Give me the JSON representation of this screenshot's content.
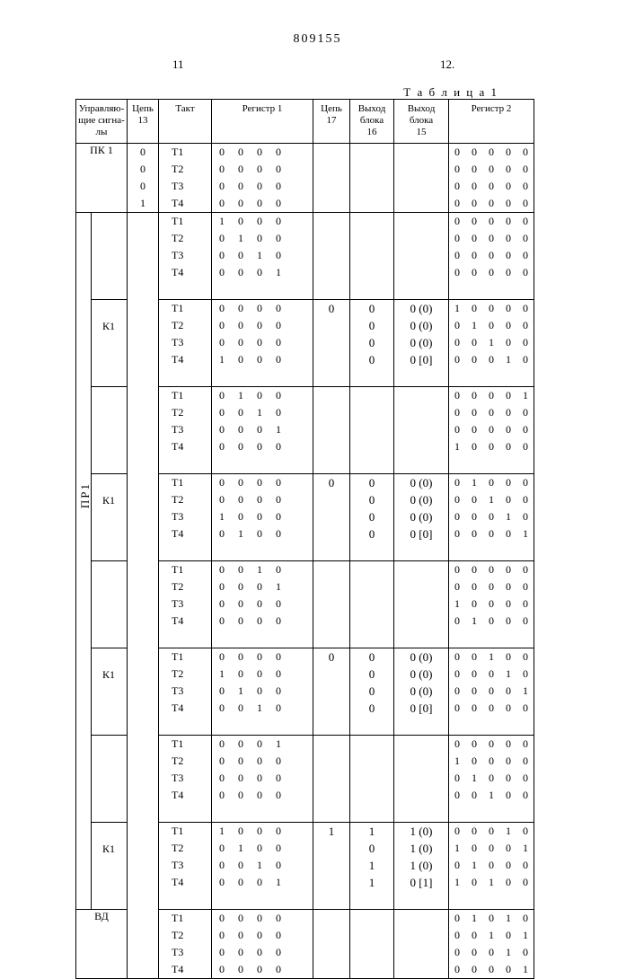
{
  "doc_number": "809155",
  "page_left": "11",
  "page_right": "12.",
  "table_label": "Т а б л и ц а  1",
  "headers": {
    "sig": "Управляю-\nщие сигна-\nлы",
    "c13": "Цепь\n13",
    "takt": "Такт",
    "r1": "Регистр 1",
    "c17": "Цепь\n17",
    "b16": "Выход\nблока\n16",
    "b15": "Выход\nблока\n15",
    "r2": "Регистр 2"
  },
  "sig_labels": {
    "pk1": "ПК 1",
    "pr1": "ПР1",
    "k1": "К1",
    "vd": "ВД"
  },
  "groups": [
    {
      "sig": "pk1",
      "c13": [
        "0",
        "0",
        "0",
        "1"
      ],
      "takt": [
        "Т1",
        "Т2",
        "Т3",
        "Т4"
      ],
      "r1": [
        "0 0 0 0",
        "0 0 0 0",
        "0 0 0 0",
        "0 0 0 0"
      ],
      "c17": [
        "",
        "",
        "",
        ""
      ],
      "b16": [
        "",
        "",
        "",
        ""
      ],
      "b15": [
        "",
        "",
        "",
        ""
      ],
      "r2": [
        "0 0 0 0 0",
        "0 0 0 0 0",
        "0 0 0 0 0",
        "0 0 0 0 0"
      ]
    },
    {
      "sig": "",
      "takt": [
        "Т1",
        "Т2",
        "Т3",
        "Т4"
      ],
      "r1": [
        "1 0 0 0",
        "0 1 0 0",
        "0 0 1 0",
        "0 0 0 1"
      ],
      "c17": [
        "",
        "",
        "",
        ""
      ],
      "b16": [
        "",
        "",
        "",
        ""
      ],
      "b15": [
        "",
        "",
        "",
        ""
      ],
      "r2": [
        "0 0 0 0 0",
        "0 0 0 0 0",
        "0 0 0 0 0",
        "0 0 0 0 0"
      ]
    },
    {
      "sig": "k1",
      "takt": [
        "Т1",
        "Т2",
        "Т3",
        "Т4"
      ],
      "r1": [
        "0 0 0 0",
        "0 0 0 0",
        "0 0 0 0",
        "1 0 0 0"
      ],
      "c17": [
        "0",
        "",
        "",
        ""
      ],
      "b16": [
        "0",
        "0",
        "0",
        "0"
      ],
      "b15": [
        "0 (0)",
        "0 (0)",
        "0 (0)",
        "0 [0]"
      ],
      "r2": [
        "1 0 0 0 0",
        "0 1 0 0 0",
        "0 0 1 0 0",
        "0 0 0 1 0"
      ]
    },
    {
      "sig": "",
      "takt": [
        "Т1",
        "Т2",
        "Т3",
        "Т4"
      ],
      "r1": [
        "0 1 0 0",
        "0 0 1 0",
        "0 0 0 1",
        "0 0 0 0"
      ],
      "c17": [
        "",
        "",
        "",
        ""
      ],
      "b16": [
        "",
        "",
        "",
        ""
      ],
      "b15": [
        "",
        "",
        "",
        ""
      ],
      "r2": [
        "0 0 0 0 1",
        "0 0 0 0 0",
        "0 0 0 0 0",
        "1 0 0 0 0"
      ]
    },
    {
      "sig": "k1",
      "takt": [
        "Т1",
        "Т2",
        "Т3",
        "Т4"
      ],
      "r1": [
        "0 0 0 0",
        "0 0 0 0",
        "1 0 0 0",
        "0 1 0 0"
      ],
      "c17": [
        "0",
        "",
        "",
        ""
      ],
      "b16": [
        "0",
        "0",
        "0",
        "0"
      ],
      "b15": [
        "0 (0)",
        "0 (0)",
        "0 (0)",
        "0 [0]"
      ],
      "r2": [
        "0 1 0 0 0",
        "0 0 1 0 0",
        "0 0 0 1 0",
        "0 0 0 0 1"
      ]
    },
    {
      "sig": "",
      "takt": [
        "Т1",
        "Т2",
        "Т3",
        "Т4"
      ],
      "r1": [
        "0 0 1 0",
        "0 0 0 1",
        "0 0 0 0",
        "0 0 0 0"
      ],
      "c17": [
        "",
        "",
        "",
        ""
      ],
      "b16": [
        "",
        "",
        "",
        ""
      ],
      "b15": [
        "",
        "",
        "",
        ""
      ],
      "r2": [
        "0 0 0 0 0",
        "0 0 0 0 0",
        "1 0 0 0 0",
        "0 1 0 0 0"
      ]
    },
    {
      "sig": "k1",
      "takt": [
        "Т1",
        "Т2",
        "Т3",
        "Т4"
      ],
      "r1": [
        "0 0 0 0",
        "1 0 0 0",
        "0 1 0 0",
        "0 0 1 0"
      ],
      "c17": [
        "0",
        "",
        "",
        ""
      ],
      "b16": [
        "0",
        "0",
        "0",
        "0"
      ],
      "b15": [
        "0 (0)",
        "0 (0)",
        "0 (0)",
        "0 [0]"
      ],
      "r2": [
        "0 0 1 0 0",
        "0 0 0 1 0",
        "0 0 0 0 1",
        "0 0 0 0 0"
      ]
    },
    {
      "sig": "",
      "takt": [
        "Т1",
        "Т2",
        "Т3",
        "Т4"
      ],
      "r1": [
        "0 0 0 1",
        "0 0 0 0",
        "0 0 0 0",
        "0 0 0 0"
      ],
      "c17": [
        "",
        "",
        "",
        ""
      ],
      "b16": [
        "",
        "",
        "",
        ""
      ],
      "b15": [
        "",
        "",
        "",
        ""
      ],
      "r2": [
        "0 0 0 0 0",
        "1 0 0 0 0",
        "0 1 0 0 0",
        "0 0 1 0 0"
      ]
    },
    {
      "sig": "k1",
      "takt": [
        "Т1",
        "Т2",
        "Т3",
        "Т4"
      ],
      "r1": [
        "1 0 0 0",
        "0 1 0 0",
        "0 0 1 0",
        "0 0 0 1"
      ],
      "c17": [
        "1",
        "",
        "",
        ""
      ],
      "b16": [
        "1",
        "0",
        "1",
        "1"
      ],
      "b15": [
        "1 (0)",
        "1 (0)",
        "1 (0)",
        "0 [1]"
      ],
      "r2": [
        "0 0 0 1 0",
        "1 0 0 0 1",
        "0 1 0 0 0",
        "1 0 1 0 0"
      ]
    },
    {
      "sig": "vd",
      "takt": [
        "Т1",
        "Т2",
        "Т3",
        "Т4"
      ],
      "r1": [
        "0 0 0 0",
        "0 0 0 0",
        "0 0 0 0",
        "0 0 0 0"
      ],
      "c17": [
        "",
        "",
        "",
        ""
      ],
      "b16": [
        "",
        "",
        "",
        ""
      ],
      "b15": [
        "",
        "",
        "",
        ""
      ],
      "r2": [
        "0 1 0 1 0",
        "0 0 1 0 1",
        "0 0 0 1 0",
        "0 0 0 0 1"
      ]
    }
  ]
}
